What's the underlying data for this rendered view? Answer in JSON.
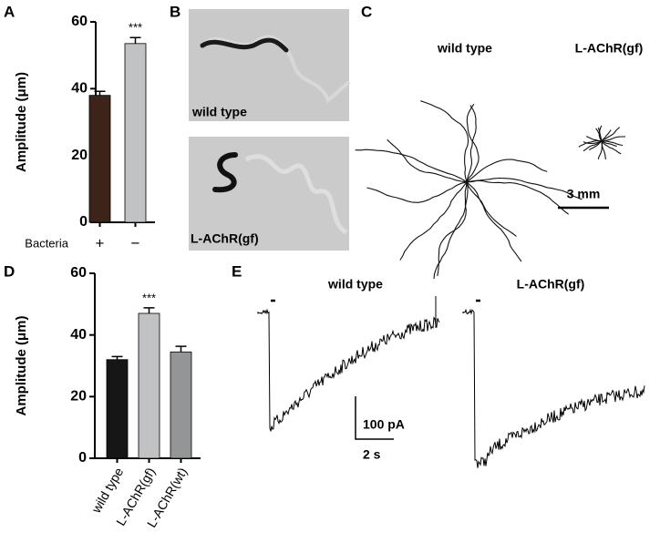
{
  "chart_data": [
    {
      "type": "bar",
      "panel": "A",
      "y_label": "Amplitude (μm)",
      "x_label": "Bacteria",
      "categories": [
        "+",
        "−"
      ],
      "values": [
        38,
        53.5
      ],
      "errors": [
        1.2,
        1.8
      ],
      "colors": [
        "#3d2418",
        "#c0c2c4"
      ],
      "annotations": [
        null,
        "***"
      ],
      "ylim": [
        0,
        60
      ],
      "yticks": [
        0,
        20,
        40,
        60
      ]
    },
    {
      "type": "bar",
      "panel": "D",
      "y_label": "Amplitude (μm)",
      "categories": [
        "wild type",
        "L-AChR(gf)",
        "L-AChR(wt)"
      ],
      "values": [
        32,
        47,
        34.5
      ],
      "errors": [
        1,
        1.8,
        1.8
      ],
      "colors": [
        "#161616",
        "#c0c2c4",
        "#939597"
      ],
      "annotations": [
        null,
        "***",
        null
      ],
      "ylim": [
        0,
        60
      ],
      "yticks": [
        0,
        20,
        40,
        60
      ]
    }
  ],
  "panels": {
    "B": {
      "letter": "B",
      "images": [
        "wild type",
        "L-AChR(gf)"
      ]
    },
    "C": {
      "letter": "C",
      "labels": [
        "wild type",
        "L-AChR(gf)"
      ],
      "scale": "3 mm"
    },
    "E": {
      "letter": "E",
      "labels": [
        "wild type",
        "L-AChR(gf)"
      ],
      "scale_current": "100 pA",
      "scale_time": "2 s"
    }
  }
}
